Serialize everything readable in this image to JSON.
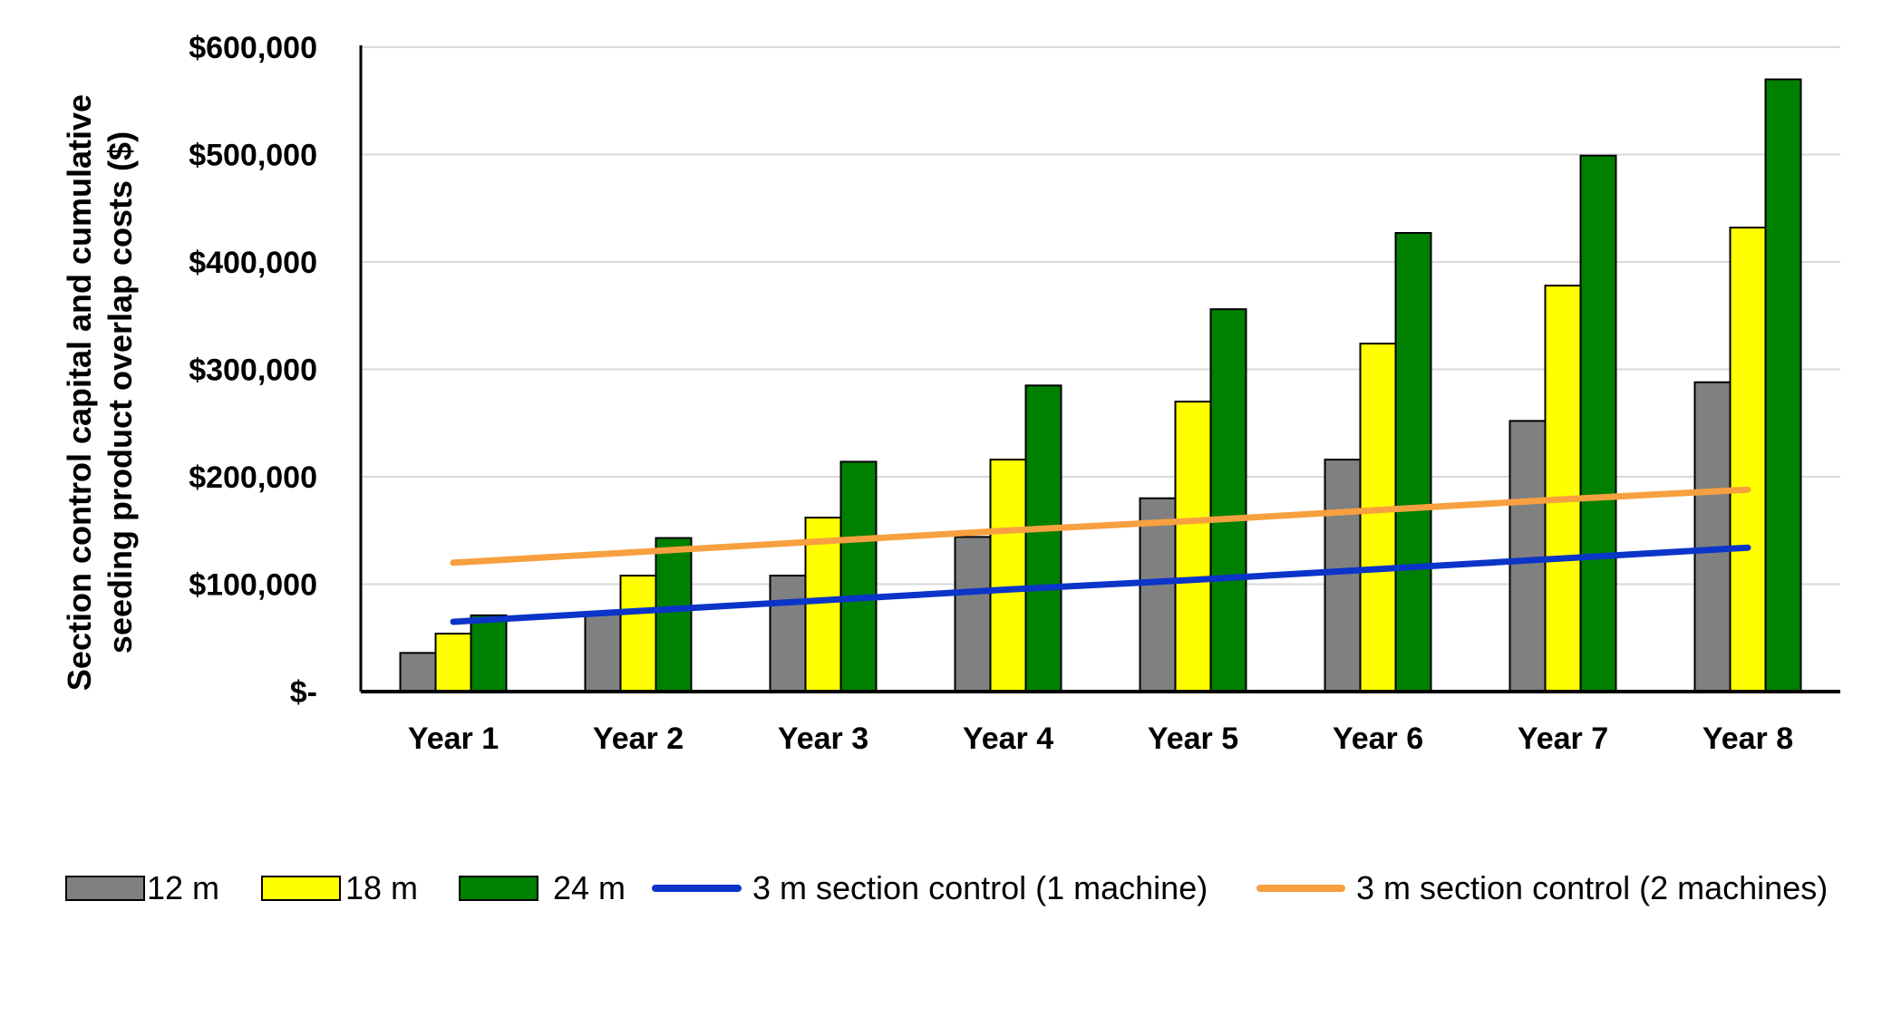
{
  "chart_data": {
    "type": "bar",
    "categories": [
      "Year 1",
      "Year 2",
      "Year 3",
      "Year 4",
      "Year 5",
      "Year 6",
      "Year 7",
      "Year 8"
    ],
    "series": [
      {
        "name": "12 m",
        "type": "bar",
        "color": "#808080",
        "values": [
          36000,
          72000,
          108000,
          144000,
          180000,
          216000,
          252000,
          288000
        ]
      },
      {
        "name": "18 m",
        "type": "bar",
        "color": "#ffff00",
        "values": [
          54000,
          108000,
          162000,
          216000,
          270000,
          324000,
          378000,
          432000
        ]
      },
      {
        "name": "24 m",
        "type": "bar",
        "color": "#008000",
        "values": [
          71000,
          143000,
          214000,
          285000,
          356000,
          427000,
          499000,
          570000
        ]
      },
      {
        "name": "3 m section control (1 machine)",
        "type": "line",
        "color": "#0b34c8",
        "values": [
          65000,
          75000,
          85000,
          95000,
          104000,
          114000,
          124000,
          134000
        ]
      },
      {
        "name": "3 m section control (2 machines)",
        "type": "line",
        "color": "#f7a040",
        "values": [
          120000,
          130000,
          140000,
          150000,
          159000,
          169000,
          179000,
          188000
        ]
      }
    ],
    "ylabel_lines": [
      "Section control capital and cumulative",
      "seeding product overlap costs ($)"
    ],
    "xlabel": "",
    "ylim": [
      0,
      600000
    ],
    "yticks": [
      {
        "value": 0,
        "label": "$-"
      },
      {
        "value": 100000,
        "label": "$100,000"
      },
      {
        "value": 200000,
        "label": "$200,000"
      },
      {
        "value": 300000,
        "label": "$300,000"
      },
      {
        "value": 400000,
        "label": "$400,000"
      },
      {
        "value": 500000,
        "label": "$500,000"
      },
      {
        "value": 600000,
        "label": "$600,000"
      }
    ],
    "grid": true,
    "legend_position": "bottom"
  }
}
